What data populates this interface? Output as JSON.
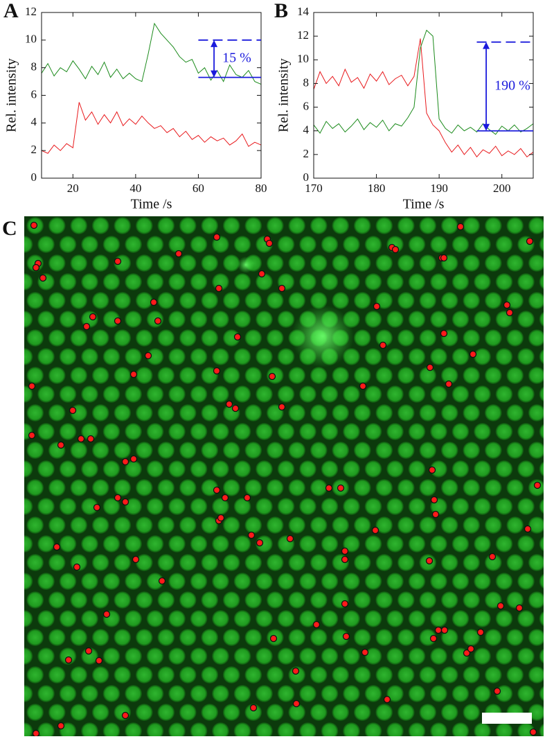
{
  "chart_data": [
    {
      "type": "line",
      "panel": "A",
      "xlabel": "Time /s",
      "ylabel": "Rel. intensity",
      "xlim": [
        10,
        80
      ],
      "xticks": [
        20,
        40,
        60,
        80
      ],
      "ylim": [
        0,
        12
      ],
      "yticks": [
        0,
        2,
        4,
        6,
        8,
        10,
        12
      ],
      "x": [
        10,
        12,
        14,
        16,
        18,
        20,
        22,
        24,
        26,
        28,
        30,
        32,
        34,
        36,
        38,
        40,
        42,
        44,
        46,
        48,
        50,
        52,
        54,
        56,
        58,
        60,
        62,
        64,
        66,
        68,
        70,
        72,
        74,
        76,
        78,
        80
      ],
      "series": [
        {
          "color": "#1a8a1a",
          "values": [
            7.6,
            8.3,
            7.4,
            8.0,
            7.7,
            8.5,
            7.9,
            7.2,
            8.1,
            7.5,
            8.4,
            7.3,
            7.9,
            7.2,
            7.6,
            7.2,
            7.0,
            9.0,
            11.2,
            10.5,
            10.0,
            9.5,
            8.8,
            8.4,
            8.6,
            7.6,
            8.0,
            7.1,
            7.8,
            7.0,
            8.2,
            7.5,
            7.3,
            7.8,
            7.0,
            6.8
          ]
        },
        {
          "color": "#e8191c",
          "values": [
            2.0,
            1.8,
            2.4,
            2.0,
            2.5,
            2.2,
            5.5,
            4.2,
            4.8,
            3.9,
            4.6,
            4.0,
            4.8,
            3.8,
            4.3,
            3.9,
            4.5,
            4.0,
            3.6,
            3.8,
            3.3,
            3.6,
            3.0,
            3.4,
            2.8,
            3.1,
            2.6,
            3.0,
            2.7,
            2.9,
            2.4,
            2.7,
            3.2,
            2.3,
            2.6,
            2.4
          ]
        }
      ],
      "annotation": {
        "text": "15 %",
        "y": [
          10,
          7.3
        ],
        "x": [
          60,
          80
        ],
        "arrow_x": 65,
        "color": "#1a1adc"
      }
    },
    {
      "type": "line",
      "panel": "B",
      "xlabel": "Time /s",
      "ylabel": "Rel. intensity",
      "xlim": [
        170,
        205
      ],
      "xticks": [
        170,
        180,
        190,
        200
      ],
      "ylim": [
        0,
        14
      ],
      "yticks": [
        0,
        2,
        4,
        6,
        8,
        10,
        12,
        14
      ],
      "x": [
        170,
        171,
        172,
        173,
        174,
        175,
        176,
        177,
        178,
        179,
        180,
        181,
        182,
        183,
        184,
        185,
        186,
        187,
        188,
        189,
        190,
        191,
        192,
        193,
        194,
        195,
        196,
        197,
        198,
        199,
        200,
        201,
        202,
        203,
        204,
        205
      ],
      "series": [
        {
          "color": "#e8191c",
          "values": [
            7.5,
            9.0,
            8.0,
            8.6,
            7.8,
            9.2,
            8.1,
            8.5,
            7.6,
            8.8,
            8.2,
            9.0,
            7.9,
            8.4,
            8.7,
            7.8,
            8.6,
            11.8,
            5.5,
            4.5,
            4.0,
            3.0,
            2.2,
            2.8,
            2.0,
            2.6,
            1.8,
            2.4,
            2.1,
            2.7,
            1.9,
            2.3,
            2.0,
            2.5,
            1.8,
            2.2
          ]
        },
        {
          "color": "#1a8a1a",
          "values": [
            4.5,
            3.8,
            4.8,
            4.2,
            4.6,
            3.9,
            4.4,
            5.0,
            4.1,
            4.7,
            4.3,
            4.9,
            4.0,
            4.6,
            4.4,
            5.1,
            6.0,
            11.0,
            12.5,
            12.0,
            5.0,
            4.2,
            3.8,
            4.5,
            4.0,
            4.3,
            3.9,
            4.6,
            4.1,
            3.7,
            4.4,
            4.0,
            4.5,
            3.9,
            4.2,
            4.6
          ]
        }
      ],
      "annotation": {
        "text": "190 %",
        "y": [
          11.5,
          4
        ],
        "x": [
          196,
          205
        ],
        "arrow_x": 197.5,
        "color": "#1a1adc"
      }
    },
    {
      "type": "image",
      "panel": "C"
    }
  ]
}
